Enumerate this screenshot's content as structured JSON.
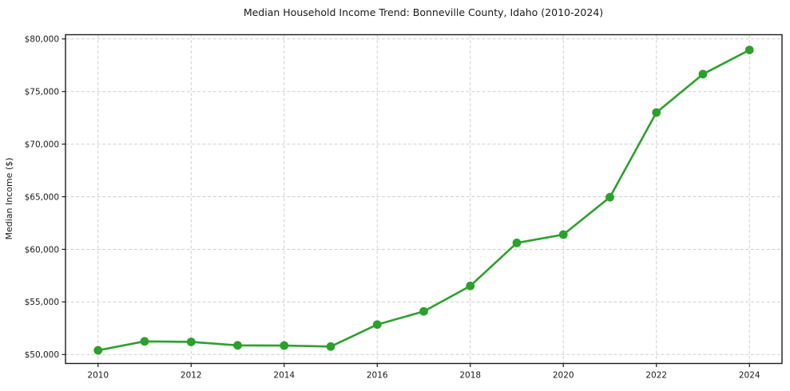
{
  "chart_data": {
    "type": "line",
    "title": "Median Household Income Trend: Bonneville County, Idaho (2010-2024)",
    "xlabel": "",
    "ylabel": "Median Income ($)",
    "series": [
      {
        "name": "Median household income",
        "x": [
          2010,
          2011,
          2012,
          2013,
          2014,
          2015,
          2016,
          2017,
          2018,
          2019,
          2020,
          2021,
          2022,
          2023,
          2024
        ],
        "values": [
          50400,
          51250,
          51200,
          50870,
          50850,
          50760,
          52850,
          54100,
          56520,
          60610,
          61400,
          64950,
          73000,
          76650,
          78950
        ]
      }
    ],
    "xlim": [
      2009.3,
      2024.7
    ],
    "ylim": [
      49150,
      80400
    ],
    "yticks": [
      {
        "value": 50000,
        "label": "$50,000"
      },
      {
        "value": 55000,
        "label": "$55,000"
      },
      {
        "value": 60000,
        "label": "$60,000"
      },
      {
        "value": 65000,
        "label": "$65,000"
      },
      {
        "value": 70000,
        "label": "$70,000"
      },
      {
        "value": 75000,
        "label": "$75,000"
      },
      {
        "value": 80000,
        "label": "$80,000"
      }
    ],
    "xticks": [
      {
        "value": 2010,
        "label": "2010"
      },
      {
        "value": 2012,
        "label": "2012"
      },
      {
        "value": 2014,
        "label": "2014"
      },
      {
        "value": 2016,
        "label": "2016"
      },
      {
        "value": 2018,
        "label": "2018"
      },
      {
        "value": 2020,
        "label": "2020"
      },
      {
        "value": 2022,
        "label": "2022"
      },
      {
        "value": 2024,
        "label": "2024"
      }
    ],
    "grid": "dashed-both",
    "legend": "none",
    "line_color": "#2ca02c",
    "marker": "circle",
    "marker_radius": 5.4,
    "grid_color": "#cfcfcf",
    "text_color": "#1a1a1a",
    "background_color": "#ffffff"
  }
}
